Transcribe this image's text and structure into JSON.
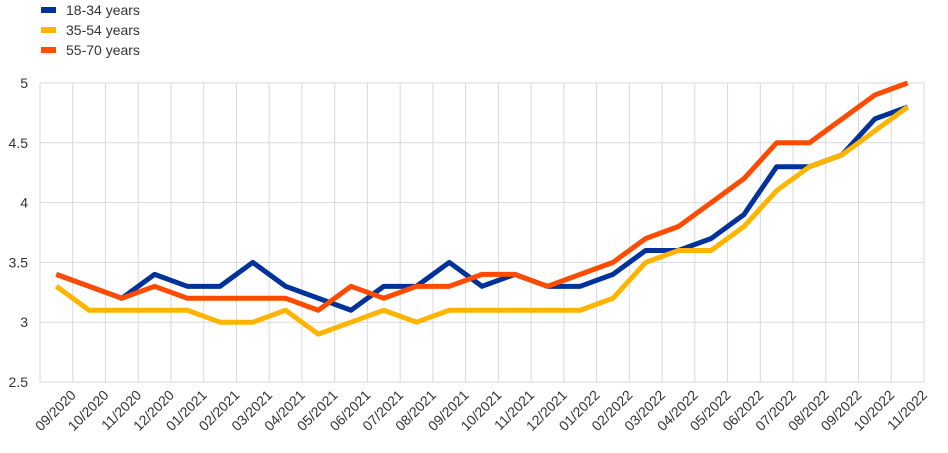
{
  "chart_data": {
    "type": "line",
    "title": "",
    "xlabel": "",
    "ylabel": "",
    "ylim": [
      2.5,
      5
    ],
    "yticks": [
      "2.5",
      "3",
      "3.5",
      "4",
      "4.5",
      "5"
    ],
    "grid": true,
    "legend_position": "top-left",
    "categories": [
      "09/2020",
      "10/2020",
      "11/2020",
      "12/2020",
      "01/2021",
      "02/2021",
      "03/2021",
      "04/2021",
      "05/2021",
      "06/2021",
      "07/2021",
      "08/2021",
      "09/2021",
      "10/2021",
      "11/2021",
      "12/2021",
      "01/2022",
      "02/2022",
      "03/2022",
      "04/2022",
      "05/2022",
      "06/2022",
      "07/2022",
      "08/2022",
      "09/2022",
      "10/2022",
      "11/2022"
    ],
    "series": [
      {
        "name": "18-34 years",
        "color": "#003299",
        "values": [
          3.4,
          3.3,
          3.2,
          3.4,
          3.3,
          3.3,
          3.5,
          3.3,
          3.2,
          3.1,
          3.3,
          3.3,
          3.5,
          3.3,
          3.4,
          3.3,
          3.3,
          3.4,
          3.6,
          3.6,
          3.7,
          3.9,
          4.3,
          4.3,
          4.4,
          4.7,
          4.8
        ]
      },
      {
        "name": "35-54 years",
        "color": "#FFB400",
        "values": [
          3.3,
          3.1,
          3.1,
          3.1,
          3.1,
          3.0,
          3.0,
          3.1,
          2.9,
          3.0,
          3.1,
          3.0,
          3.1,
          3.1,
          3.1,
          3.1,
          3.1,
          3.2,
          3.5,
          3.6,
          3.6,
          3.8,
          4.1,
          4.3,
          4.4,
          4.6,
          4.8
        ]
      },
      {
        "name": "55-70 years",
        "color": "#FF4B00",
        "values": [
          3.4,
          3.3,
          3.2,
          3.3,
          3.2,
          3.2,
          3.2,
          3.2,
          3.1,
          3.3,
          3.2,
          3.3,
          3.3,
          3.4,
          3.4,
          3.3,
          3.4,
          3.5,
          3.7,
          3.8,
          4.0,
          4.2,
          4.5,
          4.5,
          4.7,
          4.9,
          5.0
        ]
      }
    ]
  }
}
